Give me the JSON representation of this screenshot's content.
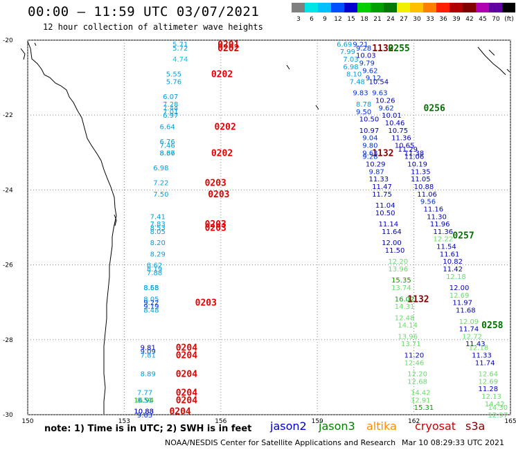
{
  "header": {
    "title": "00:00 – 11:59 UTC 03/07/2021",
    "subtitle": "12 hour collection of altimeter wave heights"
  },
  "legend": {
    "colors": [
      "#7f7f7f",
      "#00e5e5",
      "#00c0ff",
      "#0050ff",
      "#0000d0",
      "#00d000",
      "#00a000",
      "#007a00",
      "#f0f000",
      "#ffc000",
      "#ff8000",
      "#ff2000",
      "#b00000",
      "#800000",
      "#b000b0",
      "#6000a0",
      "#000000"
    ],
    "labels": [
      "3",
      "6",
      "9",
      "12",
      "15",
      "18",
      "21",
      "24",
      "27",
      "30",
      "33",
      "36",
      "39",
      "42",
      "45",
      "70",
      "(ft)"
    ]
  },
  "axes": {
    "x_ticks": [
      "150",
      "153",
      "156",
      "159",
      "162",
      "165"
    ],
    "y_ticks": [
      "-20",
      "-22",
      "-24",
      "-26",
      "-28",
      "-30"
    ]
  },
  "footer": {
    "note": "note: 1) Time is in UTC; 2) SWH is in feet",
    "satellites": [
      {
        "name": "jason2",
        "color": "#0000cc"
      },
      {
        "name": "jason3",
        "color": "#008000"
      },
      {
        "name": "altika",
        "color": "#ff8c00"
      },
      {
        "name": "cryosat",
        "color": "#cc0000"
      },
      {
        "name": "s3a",
        "color": "#800000"
      }
    ],
    "credit": "NOAA/NESDIS Center for Satellite Applications and Research",
    "timestamp": "Mar 10 08:29:33 UTC 2021"
  },
  "map_data": {
    "lon_range": [
      150,
      165
    ],
    "lat_range": [
      -30,
      -20
    ],
    "tracks": [
      {
        "time": "0201",
        "lon": 155.9,
        "lat": -20.1
      },
      {
        "time": "0202",
        "lon": 155.9,
        "lat": -20.2
      },
      {
        "time": "0202",
        "lon": 155.7,
        "lat": -20.9
      },
      {
        "time": "0202",
        "lon": 155.8,
        "lat": -22.3
      },
      {
        "time": "0202",
        "lon": 155.7,
        "lat": -23.0
      },
      {
        "time": "0203",
        "lon": 155.5,
        "lat": -23.8
      },
      {
        "time": "0203",
        "lon": 155.6,
        "lat": -24.1
      },
      {
        "time": "0203",
        "lon": 155.5,
        "lat": -24.9
      },
      {
        "time": "0203",
        "lon": 155.5,
        "lat": -25.0
      },
      {
        "time": "0203",
        "lon": 155.2,
        "lat": -27.0
      },
      {
        "time": "0204",
        "lon": 154.6,
        "lat": -28.2
      },
      {
        "time": "0204",
        "lon": 154.6,
        "lat": -28.4
      },
      {
        "time": "0204",
        "lon": 154.6,
        "lat": -28.9
      },
      {
        "time": "0204",
        "lon": 154.6,
        "lat": -29.4
      },
      {
        "time": "0204",
        "lon": 154.6,
        "lat": -29.6
      },
      {
        "time": "0204",
        "lon": 154.4,
        "lat": -29.9
      },
      {
        "time": "1132",
        "lon": 160.7,
        "lat": -20.2
      },
      {
        "time": "1132",
        "lon": 160.7,
        "lat": -23.0
      },
      {
        "time": "1132",
        "lon": 161.8,
        "lat": -26.9
      },
      {
        "time": "0255",
        "lon": 161.2,
        "lat": -20.2
      },
      {
        "time": "0256",
        "lon": 162.3,
        "lat": -21.8
      },
      {
        "time": "0257",
        "lon": 163.2,
        "lat": -25.2
      },
      {
        "time": "0258",
        "lon": 164.1,
        "lat": -27.6
      }
    ],
    "swh": [
      {
        "v": "5.71",
        "lon": 154.5,
        "lat": -20.1,
        "c": "#00a0e0"
      },
      {
        "v": "5.72",
        "lon": 154.5,
        "lat": -20.2,
        "c": "#00a0e0"
      },
      {
        "v": "4.74",
        "lon": 154.5,
        "lat": -20.5,
        "c": "#00c8e8"
      },
      {
        "v": "5.55",
        "lon": 154.3,
        "lat": -20.9,
        "c": "#00a0e0"
      },
      {
        "v": "5.76",
        "lon": 154.3,
        "lat": -21.1,
        "c": "#00a0e0"
      },
      {
        "v": "6.07",
        "lon": 154.2,
        "lat": -21.5,
        "c": "#00a0e0"
      },
      {
        "v": "7.28",
        "lon": 154.2,
        "lat": -21.7,
        "c": "#00a0e0"
      },
      {
        "v": "7.44",
        "lon": 154.2,
        "lat": -21.8,
        "c": "#00a0e0"
      },
      {
        "v": "7.01",
        "lon": 154.2,
        "lat": -21.9,
        "c": "#00a0e0"
      },
      {
        "v": "6.97",
        "lon": 154.2,
        "lat": -22.0,
        "c": "#00a0e0"
      },
      {
        "v": "6.64",
        "lon": 154.1,
        "lat": -22.3,
        "c": "#00a0e0"
      },
      {
        "v": "6.76",
        "lon": 154.1,
        "lat": -22.7,
        "c": "#00a0e0"
      },
      {
        "v": "7.46",
        "lon": 154.1,
        "lat": -22.8,
        "c": "#00a0e0"
      },
      {
        "v": "8.37",
        "lon": 154.1,
        "lat": -23.0,
        "c": "#00a0e0"
      },
      {
        "v": "8.66",
        "lon": 154.1,
        "lat": -23.0,
        "c": "#00a0e0"
      },
      {
        "v": "6.98",
        "lon": 153.9,
        "lat": -23.4,
        "c": "#00a0e0"
      },
      {
        "v": "7.22",
        "lon": 153.9,
        "lat": -23.8,
        "c": "#00a0e0"
      },
      {
        "v": "7.50",
        "lon": 153.9,
        "lat": -24.1,
        "c": "#00a0e0"
      },
      {
        "v": "7.41",
        "lon": 153.8,
        "lat": -24.7,
        "c": "#00a0e0"
      },
      {
        "v": "7.83",
        "lon": 153.8,
        "lat": -24.9,
        "c": "#00a0e0"
      },
      {
        "v": "8.53",
        "lon": 153.8,
        "lat": -25.0,
        "c": "#00a0e0"
      },
      {
        "v": "8.05",
        "lon": 153.8,
        "lat": -25.1,
        "c": "#00a0e0"
      },
      {
        "v": "8.20",
        "lon": 153.8,
        "lat": -25.4,
        "c": "#00a0e0"
      },
      {
        "v": "8.29",
        "lon": 153.8,
        "lat": -25.7,
        "c": "#00a0e0"
      },
      {
        "v": "8.62",
        "lon": 153.7,
        "lat": -26.0,
        "c": "#00a0e0"
      },
      {
        "v": "8.19",
        "lon": 153.7,
        "lat": -26.1,
        "c": "#00a0e0"
      },
      {
        "v": "7.88",
        "lon": 153.7,
        "lat": -26.2,
        "c": "#00a0e0"
      },
      {
        "v": "8.68",
        "lon": 153.6,
        "lat": -26.6,
        "c": "#00a0e0"
      },
      {
        "v": "8.55",
        "lon": 153.6,
        "lat": -26.6,
        "c": "#00a0e0"
      },
      {
        "v": "8.05",
        "lon": 153.6,
        "lat": -26.9,
        "c": "#00a0e0"
      },
      {
        "v": "9.22",
        "lon": 153.6,
        "lat": -27.0,
        "c": "#0030e0"
      },
      {
        "v": "9.19",
        "lon": 153.6,
        "lat": -27.1,
        "c": "#0030e0"
      },
      {
        "v": "8.48",
        "lon": 153.6,
        "lat": -27.2,
        "c": "#00a0e0"
      },
      {
        "v": "9.81",
        "lon": 153.5,
        "lat": -28.2,
        "c": "#0000c0"
      },
      {
        "v": "9.09",
        "lon": 153.5,
        "lat": -28.3,
        "c": "#0030e0"
      },
      {
        "v": "7.81",
        "lon": 153.5,
        "lat": -28.4,
        "c": "#00a0e0"
      },
      {
        "v": "8.89",
        "lon": 153.5,
        "lat": -28.9,
        "c": "#00a0e0"
      },
      {
        "v": "7.77",
        "lon": 153.4,
        "lat": -29.4,
        "c": "#00a0e0"
      },
      {
        "v": "16.94",
        "lon": 153.3,
        "lat": -29.6,
        "c": "#00b000"
      },
      {
        "v": "8.51",
        "lon": 153.4,
        "lat": -29.6,
        "c": "#00a0e0"
      },
      {
        "v": "10.88",
        "lon": 153.3,
        "lat": -29.9,
        "c": "#0000c0"
      },
      {
        "v": "10.83",
        "lon": 153.3,
        "lat": -29.9,
        "c": "#0000c0"
      },
      {
        "v": "9.03",
        "lon": 153.4,
        "lat": -30.0,
        "c": "#0030e0"
      },
      {
        "v": "6.69",
        "lon": 159.6,
        "lat": -20.1,
        "c": "#00a0e0"
      },
      {
        "v": "9.21",
        "lon": 160.1,
        "lat": -20.1,
        "c": "#0030e0"
      },
      {
        "v": "7.99",
        "lon": 159.7,
        "lat": -20.3,
        "c": "#00a0e0"
      },
      {
        "v": "9.28",
        "lon": 160.2,
        "lat": -20.2,
        "c": "#0030e0"
      },
      {
        "v": "7.03",
        "lon": 159.8,
        "lat": -20.5,
        "c": "#00a0e0"
      },
      {
        "v": "10.03",
        "lon": 160.2,
        "lat": -20.4,
        "c": "#0000c0"
      },
      {
        "v": "6.98",
        "lon": 159.8,
        "lat": -20.7,
        "c": "#00a0e0"
      },
      {
        "v": "9.79",
        "lon": 160.3,
        "lat": -20.6,
        "c": "#0030e0"
      },
      {
        "v": "9.62",
        "lon": 160.4,
        "lat": -20.8,
        "c": "#0030e0"
      },
      {
        "v": "8.10",
        "lon": 159.9,
        "lat": -20.9,
        "c": "#00a0e0"
      },
      {
        "v": "9.12",
        "lon": 160.5,
        "lat": -21.0,
        "c": "#0030e0"
      },
      {
        "v": "7.48",
        "lon": 160.0,
        "lat": -21.1,
        "c": "#00a0e0"
      },
      {
        "v": "10.54",
        "lon": 160.6,
        "lat": -21.1,
        "c": "#0000c0"
      },
      {
        "v": "9.83",
        "lon": 160.1,
        "lat": -21.4,
        "c": "#0030e0"
      },
      {
        "v": "9.63",
        "lon": 160.7,
        "lat": -21.4,
        "c": "#0030e0"
      },
      {
        "v": "8.78",
        "lon": 160.2,
        "lat": -21.7,
        "c": "#00a0e0"
      },
      {
        "v": "10.26",
        "lon": 160.8,
        "lat": -21.6,
        "c": "#0000c0"
      },
      {
        "v": "9.50",
        "lon": 160.2,
        "lat": -21.9,
        "c": "#0030e0"
      },
      {
        "v": "9.62",
        "lon": 160.9,
        "lat": -21.8,
        "c": "#0030e0"
      },
      {
        "v": "10.01",
        "lon": 161.0,
        "lat": -22.0,
        "c": "#0000c0"
      },
      {
        "v": "10.50",
        "lon": 160.3,
        "lat": -22.1,
        "c": "#0000c0"
      },
      {
        "v": "10.46",
        "lon": 161.1,
        "lat": -22.2,
        "c": "#0000c0"
      },
      {
        "v": "10.97",
        "lon": 160.3,
        "lat": -22.4,
        "c": "#0000c0"
      },
      {
        "v": "10.75",
        "lon": 161.2,
        "lat": -22.4,
        "c": "#0000c0"
      },
      {
        "v": "9.04",
        "lon": 160.4,
        "lat": -22.6,
        "c": "#0030e0"
      },
      {
        "v": "11.36",
        "lon": 161.3,
        "lat": -22.6,
        "c": "#0000c0"
      },
      {
        "v": "9.80",
        "lon": 160.4,
        "lat": -22.8,
        "c": "#0030e0"
      },
      {
        "v": "10.65",
        "lon": 161.4,
        "lat": -22.8,
        "c": "#0000c0"
      },
      {
        "v": "9.63",
        "lon": 160.4,
        "lat": -23.0,
        "c": "#0030e0"
      },
      {
        "v": "11.29",
        "lon": 161.5,
        "lat": -22.9,
        "c": "#0000c0"
      },
      {
        "v": "9.28",
        "lon": 160.4,
        "lat": -23.1,
        "c": "#0030e0"
      },
      {
        "v": "11.38",
        "lon": 161.7,
        "lat": -23.0,
        "c": "#0000c0"
      },
      {
        "v": "11.06",
        "lon": 161.7,
        "lat": -23.1,
        "c": "#0000c0"
      },
      {
        "v": "10.29",
        "lon": 160.5,
        "lat": -23.3,
        "c": "#0000c0"
      },
      {
        "v": "10.19",
        "lon": 161.8,
        "lat": -23.3,
        "c": "#0000c0"
      },
      {
        "v": "9.87",
        "lon": 160.6,
        "lat": -23.5,
        "c": "#0030e0"
      },
      {
        "v": "11.35",
        "lon": 161.9,
        "lat": -23.5,
        "c": "#0000c0"
      },
      {
        "v": "11.33",
        "lon": 160.6,
        "lat": -23.7,
        "c": "#0000c0"
      },
      {
        "v": "11.05",
        "lon": 161.9,
        "lat": -23.7,
        "c": "#0000c0"
      },
      {
        "v": "11.47",
        "lon": 160.7,
        "lat": -23.9,
        "c": "#0000c0"
      },
      {
        "v": "10.88",
        "lon": 162.0,
        "lat": -23.9,
        "c": "#0000c0"
      },
      {
        "v": "11.75",
        "lon": 160.7,
        "lat": -24.1,
        "c": "#0000c0"
      },
      {
        "v": "11.06",
        "lon": 162.1,
        "lat": -24.1,
        "c": "#0000c0"
      },
      {
        "v": "11.04",
        "lon": 160.8,
        "lat": -24.4,
        "c": "#0000c0"
      },
      {
        "v": "9.56",
        "lon": 162.2,
        "lat": -24.3,
        "c": "#0030e0"
      },
      {
        "v": "11.16",
        "lon": 162.3,
        "lat": -24.5,
        "c": "#0000c0"
      },
      {
        "v": "10.50",
        "lon": 160.8,
        "lat": -24.6,
        "c": "#0000c0"
      },
      {
        "v": "11.30",
        "lon": 162.4,
        "lat": -24.7,
        "c": "#0000c0"
      },
      {
        "v": "11.14",
        "lon": 160.9,
        "lat": -24.9,
        "c": "#0000c0"
      },
      {
        "v": "11.96",
        "lon": 162.5,
        "lat": -24.9,
        "c": "#0000c0"
      },
      {
        "v": "11.64",
        "lon": 161.0,
        "lat": -25.1,
        "c": "#0000c0"
      },
      {
        "v": "11.36",
        "lon": 162.6,
        "lat": -25.1,
        "c": "#0000c0"
      },
      {
        "v": "12.00",
        "lon": 161.0,
        "lat": -25.4,
        "c": "#0000c0"
      },
      {
        "v": "12.22",
        "lon": 162.6,
        "lat": -25.3,
        "c": "#66dd66"
      },
      {
        "v": "11.54",
        "lon": 162.7,
        "lat": -25.5,
        "c": "#0000c0"
      },
      {
        "v": "11.50",
        "lon": 161.1,
        "lat": -25.6,
        "c": "#0000c0"
      },
      {
        "v": "11.61",
        "lon": 162.8,
        "lat": -25.7,
        "c": "#0000c0"
      },
      {
        "v": "12.20",
        "lon": 161.2,
        "lat": -25.9,
        "c": "#66dd66"
      },
      {
        "v": "10.82",
        "lon": 162.9,
        "lat": -25.9,
        "c": "#0000c0"
      },
      {
        "v": "13.96",
        "lon": 161.2,
        "lat": -26.1,
        "c": "#66dd66"
      },
      {
        "v": "11.42",
        "lon": 162.9,
        "lat": -26.1,
        "c": "#0000c0"
      },
      {
        "v": "15.35",
        "lon": 161.3,
        "lat": -26.4,
        "c": "#00a000"
      },
      {
        "v": "12.18",
        "lon": 163.0,
        "lat": -26.3,
        "c": "#66dd66"
      },
      {
        "v": "13.74",
        "lon": 161.3,
        "lat": -26.6,
        "c": "#66dd66"
      },
      {
        "v": "12.00",
        "lon": 163.1,
        "lat": -26.6,
        "c": "#0000c0"
      },
      {
        "v": "16.02",
        "lon": 161.4,
        "lat": -26.9,
        "c": "#00a000"
      },
      {
        "v": "12.69",
        "lon": 163.1,
        "lat": -26.8,
        "c": "#66dd66"
      },
      {
        "v": "14.31",
        "lon": 161.4,
        "lat": -27.1,
        "c": "#66dd66"
      },
      {
        "v": "11.97",
        "lon": 163.2,
        "lat": -27.0,
        "c": "#0000c0"
      },
      {
        "v": "11.68",
        "lon": 163.3,
        "lat": -27.2,
        "c": "#0000c0"
      },
      {
        "v": "12.48",
        "lon": 161.4,
        "lat": -27.4,
        "c": "#66dd66"
      },
      {
        "v": "12.09",
        "lon": 163.4,
        "lat": -27.5,
        "c": "#66dd66"
      },
      {
        "v": "14.14",
        "lon": 161.5,
        "lat": -27.6,
        "c": "#66dd66"
      },
      {
        "v": "11.74",
        "lon": 163.4,
        "lat": -27.7,
        "c": "#0000c0"
      },
      {
        "v": "13.96",
        "lon": 161.5,
        "lat": -27.9,
        "c": "#66dd66"
      },
      {
        "v": "12.72",
        "lon": 163.5,
        "lat": -27.9,
        "c": "#66dd66"
      },
      {
        "v": "13.71",
        "lon": 161.6,
        "lat": -28.1,
        "c": "#66dd66"
      },
      {
        "v": "11.43",
        "lon": 163.6,
        "lat": -28.1,
        "c": "#0000c0"
      },
      {
        "v": "12.18",
        "lon": 163.7,
        "lat": -28.2,
        "c": "#66dd66"
      },
      {
        "v": "11.20",
        "lon": 161.7,
        "lat": -28.4,
        "c": "#0000c0"
      },
      {
        "v": "11.33",
        "lon": 163.8,
        "lat": -28.4,
        "c": "#0000c0"
      },
      {
        "v": "12.46",
        "lon": 161.7,
        "lat": -28.6,
        "c": "#66dd66"
      },
      {
        "v": "11.74",
        "lon": 163.9,
        "lat": -28.6,
        "c": "#0000c0"
      },
      {
        "v": "12.20",
        "lon": 161.8,
        "lat": -28.9,
        "c": "#66dd66"
      },
      {
        "v": "12.64",
        "lon": 164.0,
        "lat": -28.9,
        "c": "#66dd66"
      },
      {
        "v": "12.68",
        "lon": 161.8,
        "lat": -29.1,
        "c": "#66dd66"
      },
      {
        "v": "12.69",
        "lon": 164.0,
        "lat": -29.1,
        "c": "#66dd66"
      },
      {
        "v": "11.28",
        "lon": 164.0,
        "lat": -29.3,
        "c": "#0000c0"
      },
      {
        "v": "14.42",
        "lon": 161.9,
        "lat": -29.4,
        "c": "#66dd66"
      },
      {
        "v": "12.13",
        "lon": 164.1,
        "lat": -29.5,
        "c": "#66dd66"
      },
      {
        "v": "12.91",
        "lon": 161.9,
        "lat": -29.6,
        "c": "#66dd66"
      },
      {
        "v": "14.42",
        "lon": 164.2,
        "lat": -29.7,
        "c": "#66dd66"
      },
      {
        "v": "15.31",
        "lon": 162.0,
        "lat": -29.8,
        "c": "#00a000"
      },
      {
        "v": "14.30",
        "lon": 164.3,
        "lat": -29.8,
        "c": "#66dd66"
      },
      {
        "v": "12.97",
        "lon": 164.3,
        "lat": -30.0,
        "c": "#66dd66"
      }
    ]
  }
}
